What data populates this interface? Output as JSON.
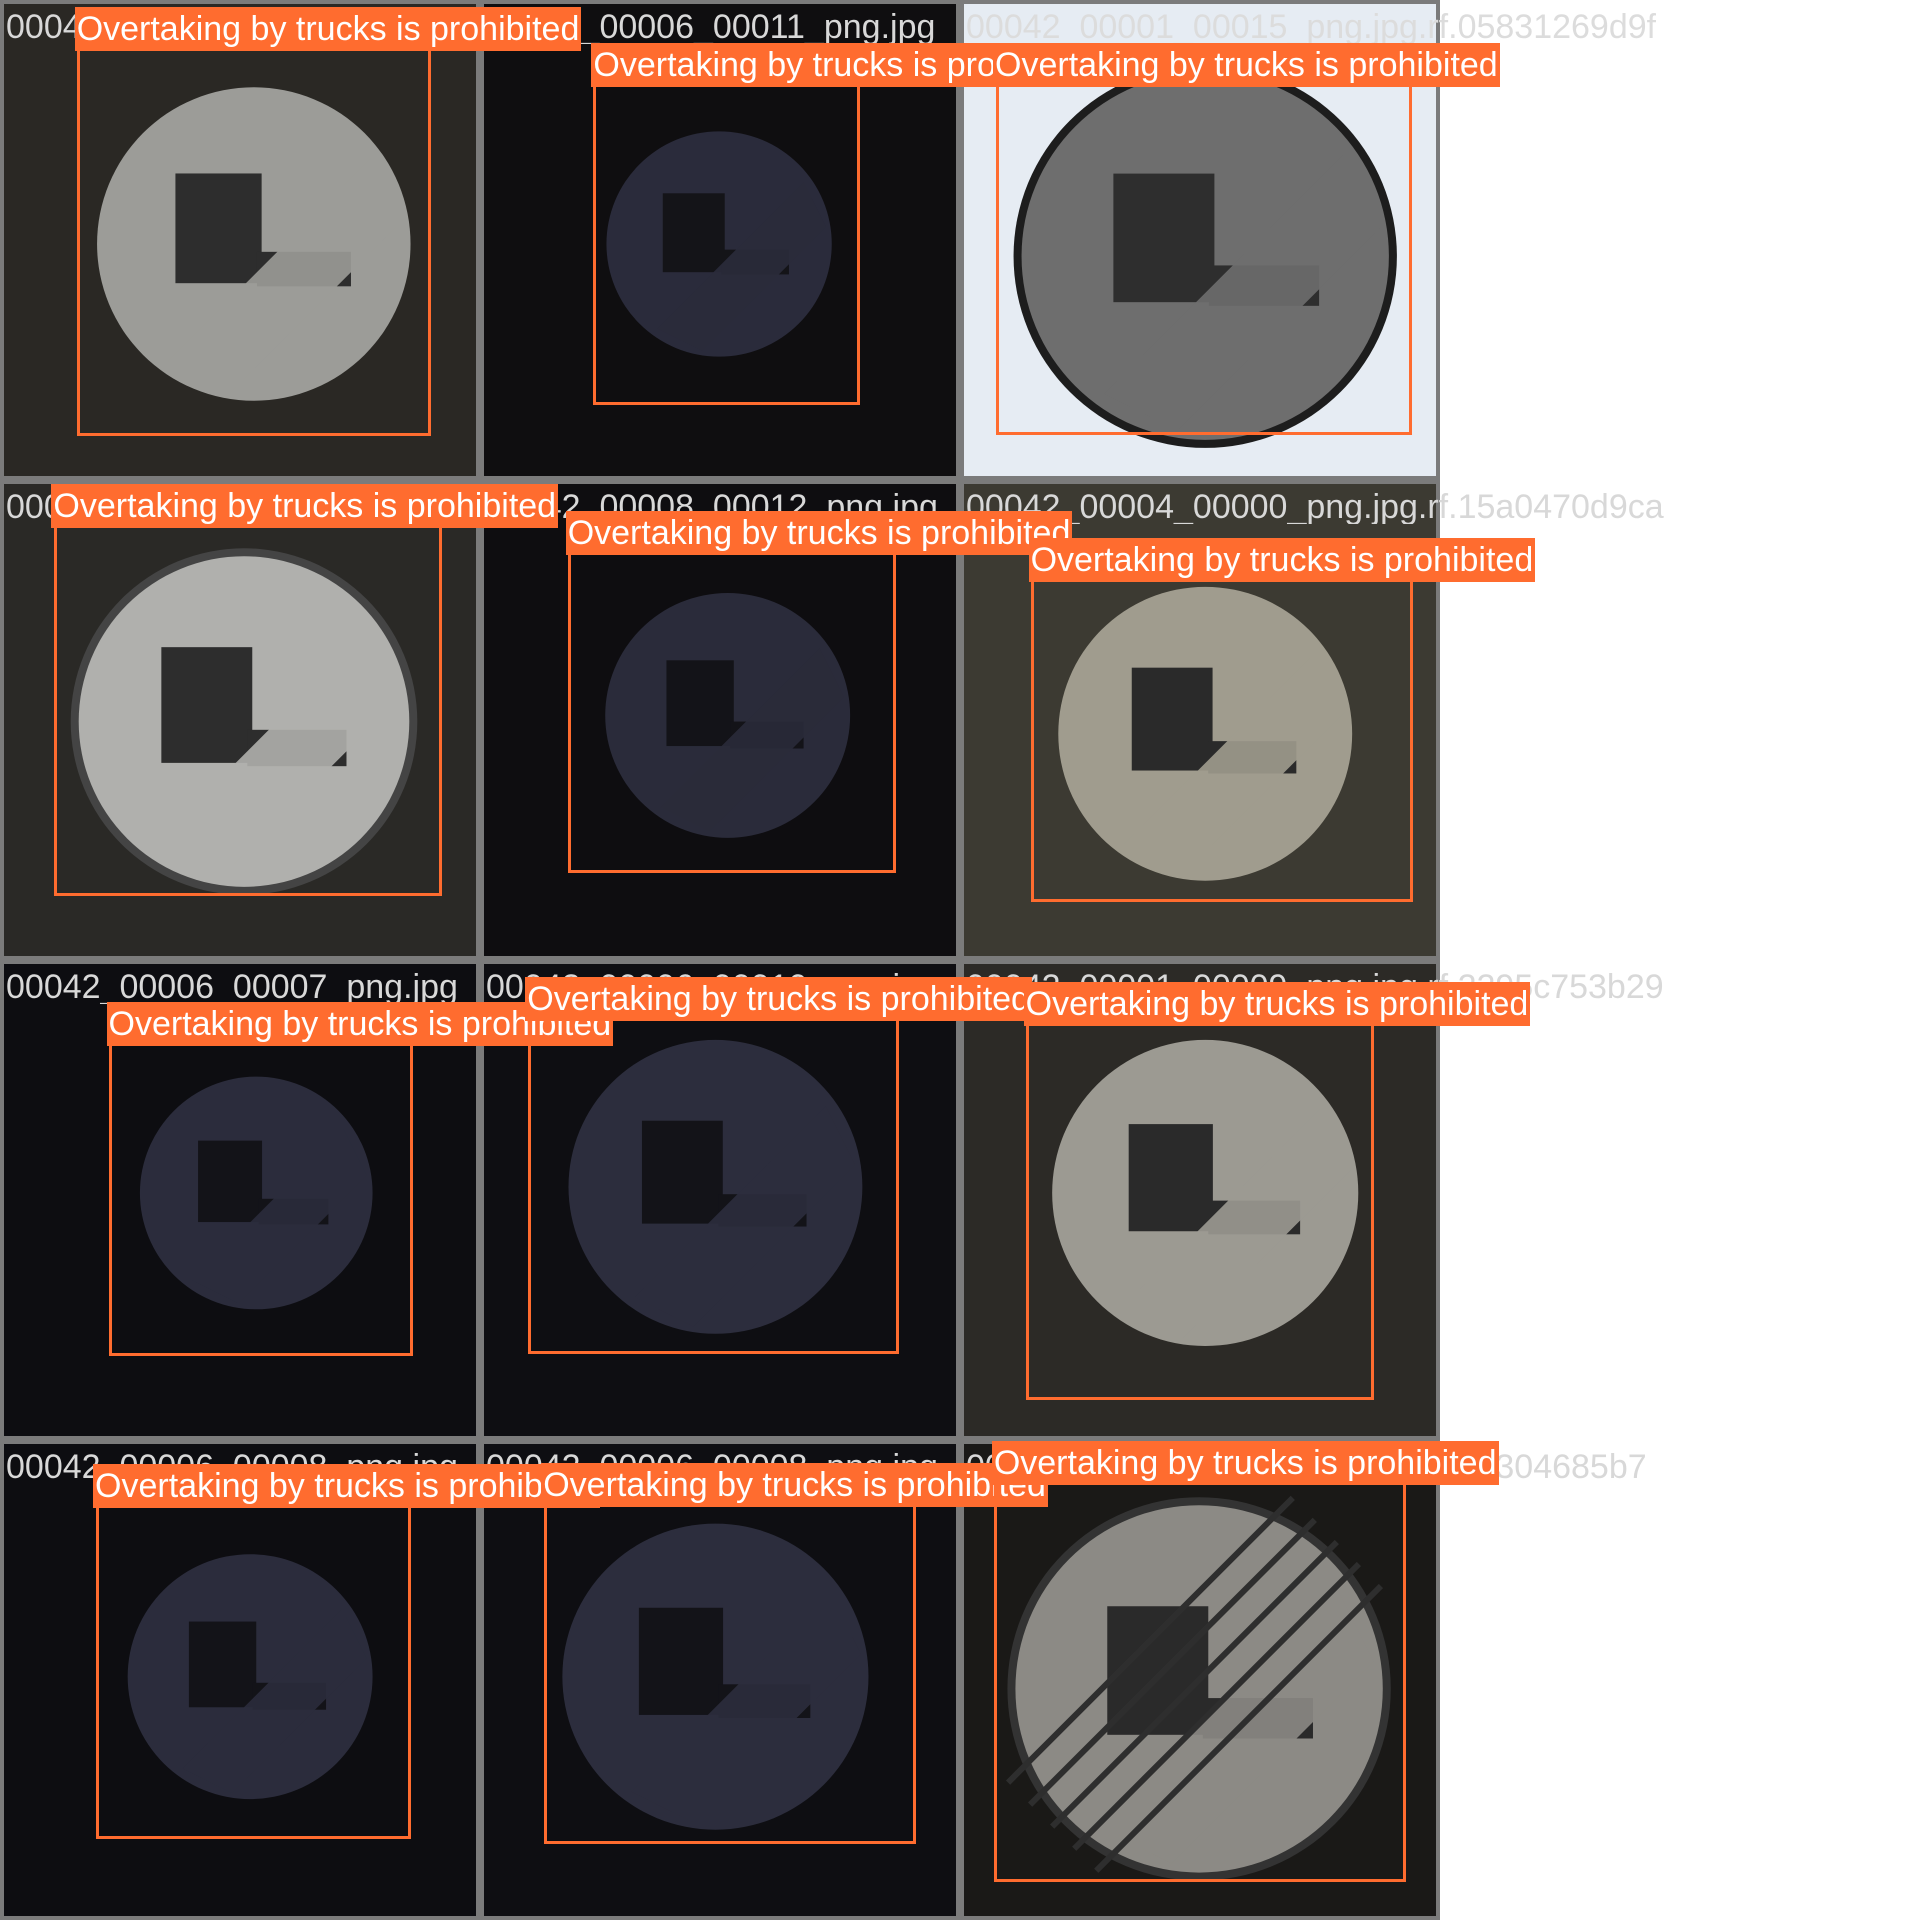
{
  "mosaic": {
    "label_text": "Overtaking by trucks is prohibited",
    "box_color": "#ff6c2f",
    "tile_border_color": "#7b7b7b",
    "tiles": [
      {
        "filename": "00042_00008_00011_png.jpg.rf.05831269d9f",
        "scene": "dark"
      },
      {
        "filename": "00042_00006_00011_png.jpg",
        "scene": "dark"
      },
      {
        "filename": "00042_00001_00015_png.jpg.rf.05831269d9f",
        "scene": "light"
      },
      {
        "filename": "00042_00008_00012_png.jpg",
        "scene": "dark"
      },
      {
        "filename": "00042_00008_00012_png.jpg",
        "scene": "dark"
      },
      {
        "filename": "00042_00004_00000_png.jpg.rf.15a0470d9ca",
        "scene": "dark"
      },
      {
        "filename": "00042_00006_00007_png.jpg",
        "scene": "dark"
      },
      {
        "filename": "00042_00006_00010_png.jpg",
        "scene": "dark"
      },
      {
        "filename": "00042_00001_00009_png.jpg.rf.2295c753b29",
        "scene": "dark"
      },
      {
        "filename": "00042_00006_00008_png.jpg",
        "scene": "dark"
      },
      {
        "filename": "00042_00006_00008_png.jpg",
        "scene": "dark"
      },
      {
        "filename": "00042_00001_00015_png.jpg.rf.33304685b7",
        "scene": "dark"
      }
    ]
  }
}
